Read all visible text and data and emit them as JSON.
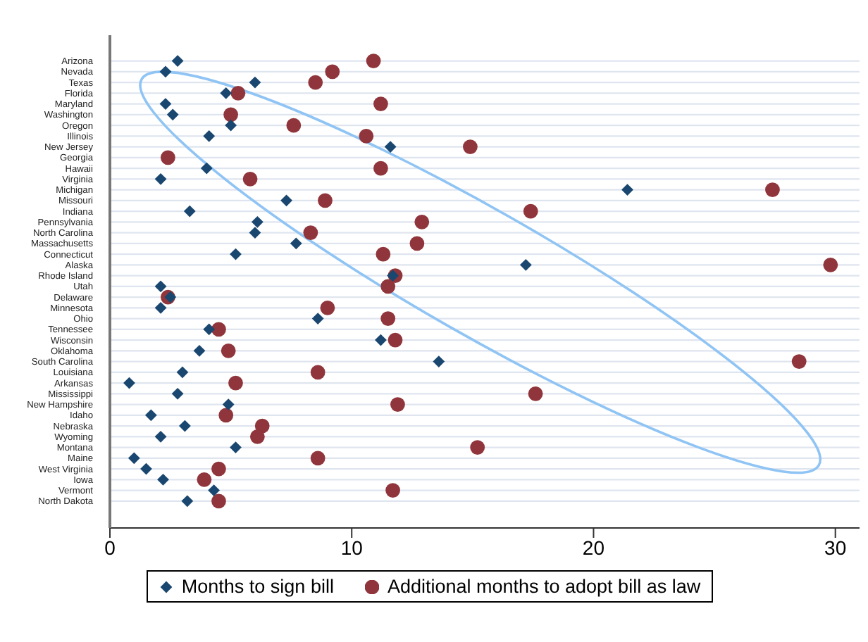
{
  "chart_data": {
    "type": "scatter",
    "categories": [
      "Arizona",
      "Nevada",
      "Texas",
      "Florida",
      "Maryland",
      "Washington",
      "Oregon",
      "Illinois",
      "New Jersey",
      "Georgia",
      "Hawaii",
      "Virginia",
      "Michigan",
      "Missouri",
      "Indiana",
      "Pennsylvania",
      "North Carolina",
      "Massachusetts",
      "Connecticut",
      "Alaska",
      "Rhode Island",
      "Utah",
      "Delaware",
      "Minnesota",
      "Ohio",
      "Tennessee",
      "Wisconsin",
      "Oklahoma",
      "South Carolina",
      "Louisiana",
      "Arkansas",
      "Mississippi",
      "New Hampshire",
      "Idaho",
      "Nebraska",
      "Wyoming",
      "Montana",
      "Maine",
      "West Virginia",
      "Iowa",
      "Vermont",
      "North Dakota"
    ],
    "orientation": "horizontal",
    "series": [
      {
        "name": "Months to sign bill",
        "color": "#1a476f",
        "marker": "diamond",
        "values": [
          2.8,
          2.3,
          6.0,
          4.8,
          2.3,
          2.6,
          5.0,
          4.1,
          11.6,
          null,
          4.0,
          2.1,
          21.4,
          7.3,
          3.3,
          6.1,
          6.0,
          7.7,
          5.2,
          17.2,
          11.7,
          2.1,
          2.5,
          2.1,
          8.6,
          4.1,
          11.2,
          3.7,
          13.6,
          3.0,
          0.8,
          2.8,
          4.9,
          1.7,
          3.1,
          2.1,
          5.2,
          1.0,
          1.5,
          2.2,
          4.3,
          3.2
        ]
      },
      {
        "name": "Additional months to adopt bill as law",
        "color": "#90353b",
        "marker": "circle",
        "values": [
          10.9,
          9.2,
          8.5,
          5.3,
          11.2,
          5.0,
          7.6,
          10.6,
          14.9,
          2.4,
          11.2,
          5.8,
          27.4,
          8.9,
          17.4,
          12.9,
          8.3,
          12.7,
          11.3,
          29.8,
          11.8,
          11.5,
          2.4,
          9.0,
          11.5,
          4.5,
          11.8,
          4.9,
          28.5,
          8.6,
          5.2,
          17.6,
          11.9,
          4.8,
          6.3,
          6.1,
          15.2,
          8.6,
          4.5,
          3.9,
          11.7,
          4.5
        ]
      }
    ],
    "xlim": [
      0,
      31
    ],
    "xticks": [
      0,
      10,
      20,
      30
    ],
    "grid": "y",
    "legend": "bottom"
  }
}
